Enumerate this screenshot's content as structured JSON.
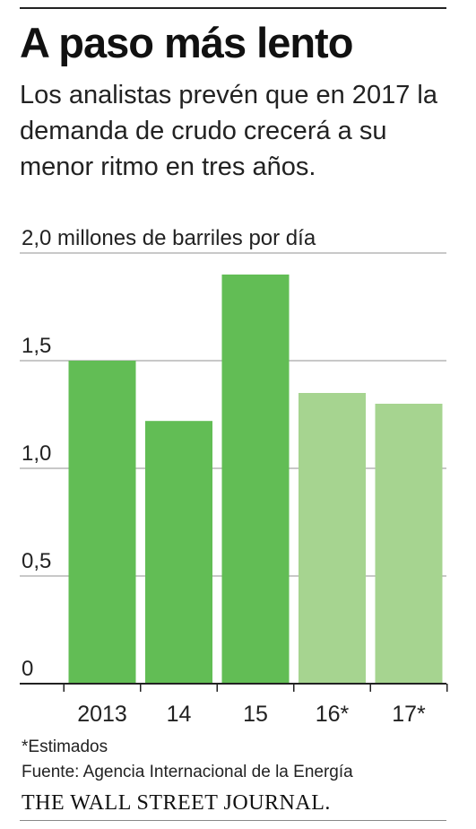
{
  "title": "A paso más lento",
  "subtitle": "Los analistas prevén que en 2017 la demanda de crudo crecerá a su menor ritmo en tres años.",
  "footnote": "*Estimados",
  "source": "Fuente: Agencia Internacional de la Energía",
  "publisher": "THE WALL STREET JOURNAL.",
  "chart_data": {
    "type": "bar",
    "categories": [
      "2013",
      "14",
      "15",
      "16*",
      "17*"
    ],
    "values": [
      1.5,
      1.22,
      1.9,
      1.35,
      1.3
    ],
    "estimated": [
      false,
      false,
      false,
      true,
      true
    ],
    "y_ticks": [
      0,
      0.5,
      1.0,
      1.5,
      2.0
    ],
    "y_tick_labels": [
      "0",
      "0,5",
      "1,0",
      "1,5",
      "2,0 millones de barriles por día"
    ],
    "ylim": [
      0,
      2.0
    ],
    "grid": true,
    "colors": {
      "actual": "#62bd55",
      "estimated": "#a6d490",
      "grid": "#c8c8c8",
      "axis": "#222222"
    }
  }
}
